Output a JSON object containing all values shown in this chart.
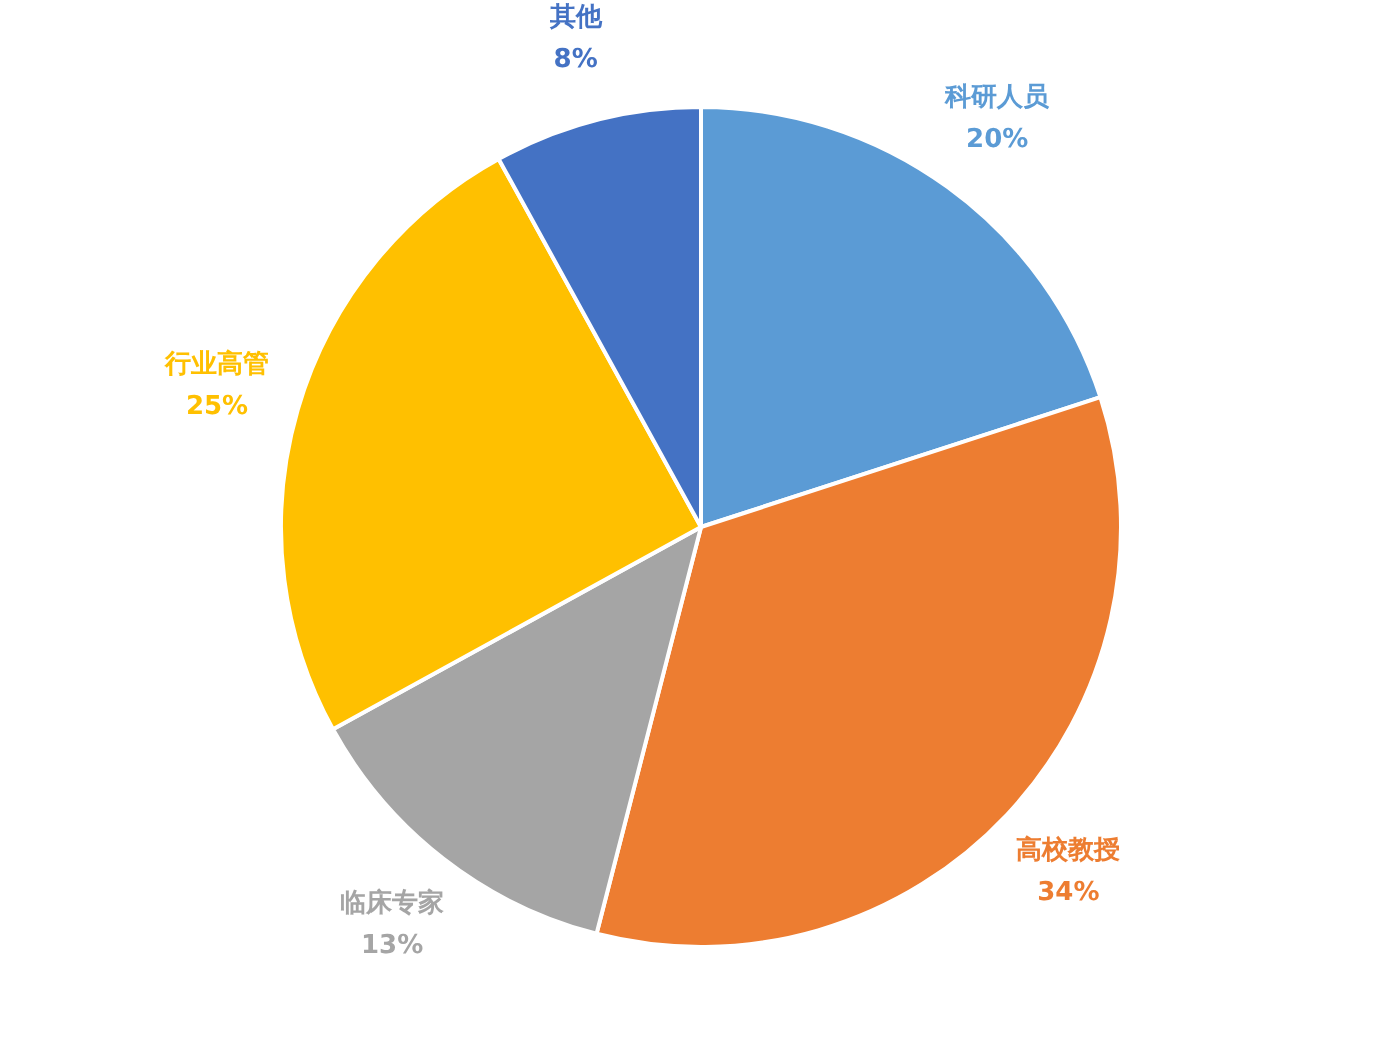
{
  "chart_data": {
    "type": "pie",
    "categories": [
      "科研人员",
      "高校教授",
      "临床专家",
      "行业高管",
      "其他"
    ],
    "values": [
      20,
      34,
      13,
      25,
      8
    ],
    "value_labels": [
      "20%",
      "34%",
      "13%",
      "25%",
      "8%"
    ],
    "colors": [
      "#5b9bd5",
      "#ed7d31",
      "#a5a5a5",
      "#ffc000",
      "#4472c4"
    ]
  }
}
